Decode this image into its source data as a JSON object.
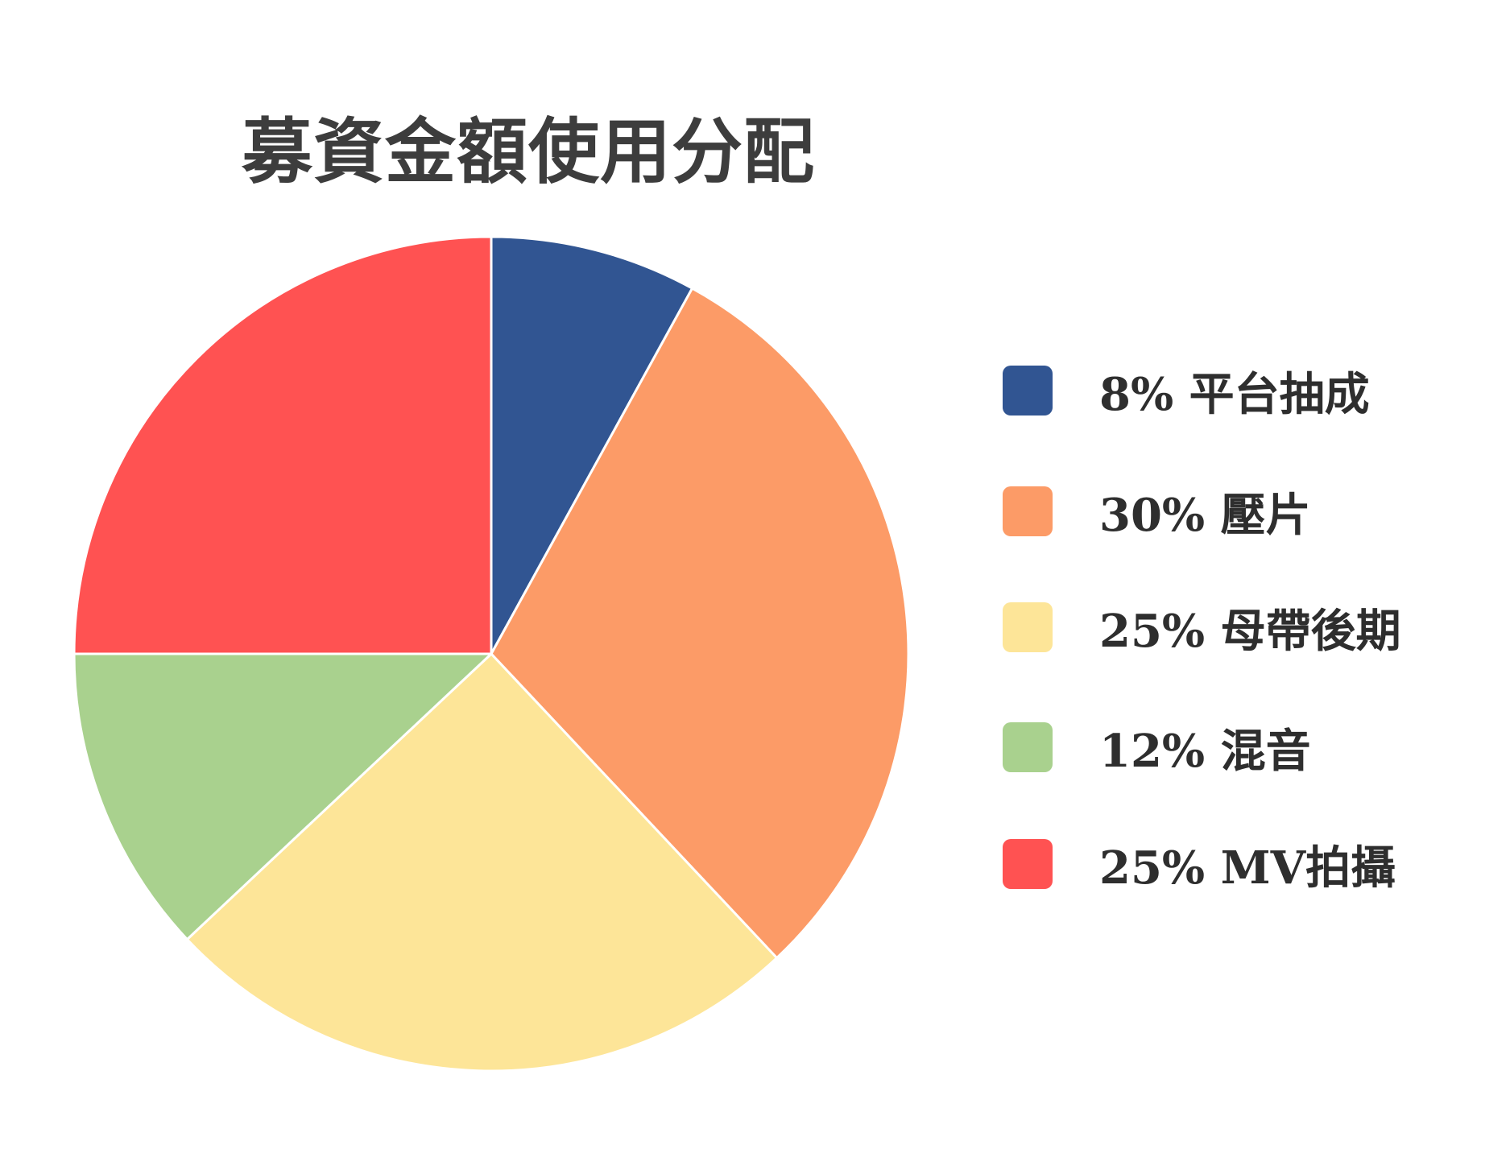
{
  "chart_data": {
    "type": "pie",
    "title": "募資金額使用分配",
    "slices": [
      {
        "label": "平台抽成",
        "value": 8,
        "legend_text": "8% 平台抽成",
        "color": "#315592"
      },
      {
        "label": "壓片",
        "value": 30,
        "legend_text": "30% 壓片",
        "color": "#fc9b67"
      },
      {
        "label": "母帶後期",
        "value": 25,
        "legend_text": "25% 母帶後期",
        "color": "#fde598"
      },
      {
        "label": "混音",
        "value": 12,
        "legend_text": "12% 混音",
        "color": "#a9d18e"
      },
      {
        "label": "MV拍攝",
        "value": 25,
        "legend_text": "25% MV拍攝",
        "color": "#ff5252"
      }
    ],
    "legend_position": "right",
    "start_angle": "12 o'clock",
    "direction": "clockwise",
    "slice_border_color": "#ffffff"
  }
}
